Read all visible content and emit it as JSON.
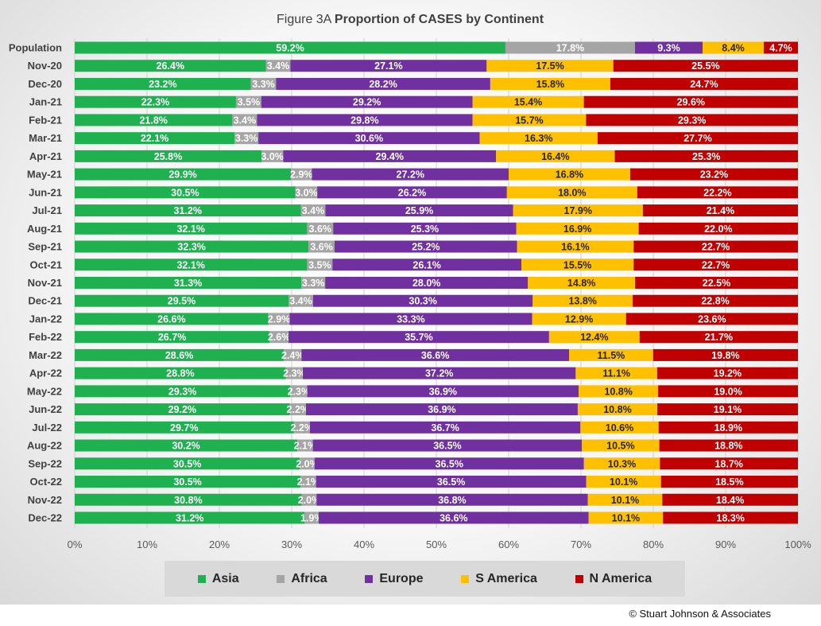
{
  "copyright": "© Stuart Johnson & Associates",
  "chart_data": {
    "type": "bar",
    "orientation": "horizontal",
    "stacked": true,
    "percent": true,
    "title_prefix": "Figure 3A",
    "title": "Proportion of CASES by Continent",
    "xlabel": "",
    "ylabel": "",
    "xlim": [
      0,
      100
    ],
    "x_ticks": [
      "0%",
      "10%",
      "20%",
      "30%",
      "40%",
      "50%",
      "60%",
      "70%",
      "80%",
      "90%",
      "100%"
    ],
    "legend_position": "bottom",
    "grid": true,
    "categories": [
      "Population",
      "Nov-20",
      "Dec-20",
      "Jan-21",
      "Feb-21",
      "Mar-21",
      "Apr-21",
      "May-21",
      "Jun-21",
      "Jul-21",
      "Aug-21",
      "Sep-21",
      "Oct-21",
      "Nov-21",
      "Dec-21",
      "Jan-22",
      "Feb-22",
      "Mar-22",
      "Apr-22",
      "May-22",
      "Jun-22",
      "Jul-22",
      "Aug-22",
      "Sep-22",
      "Oct-22",
      "Nov-22",
      "Dec-22"
    ],
    "series": [
      {
        "name": "Asia",
        "color": "#1fb050",
        "values": [
          59.2,
          26.4,
          23.2,
          22.3,
          21.8,
          22.1,
          25.8,
          29.9,
          30.5,
          31.2,
          32.1,
          32.3,
          32.1,
          31.3,
          29.5,
          26.6,
          26.7,
          28.6,
          28.8,
          29.3,
          29.2,
          29.7,
          30.2,
          30.5,
          30.5,
          30.8,
          31.2
        ]
      },
      {
        "name": "Africa",
        "color": "#a5a5a5",
        "values": [
          17.8,
          3.4,
          3.3,
          3.5,
          3.4,
          3.3,
          3.0,
          2.9,
          3.0,
          3.4,
          3.6,
          3.6,
          3.5,
          3.3,
          3.4,
          2.9,
          2.6,
          2.4,
          2.3,
          2.3,
          2.2,
          2.2,
          2.1,
          2.0,
          2.1,
          2.0,
          1.9
        ]
      },
      {
        "name": "Europe",
        "color": "#7030a0",
        "values": [
          9.3,
          27.1,
          28.2,
          29.2,
          29.8,
          30.6,
          29.4,
          27.2,
          26.2,
          25.9,
          25.3,
          25.2,
          26.1,
          28.0,
          30.3,
          33.3,
          35.7,
          36.6,
          37.2,
          36.9,
          36.9,
          36.7,
          36.5,
          36.5,
          36.5,
          36.8,
          36.6
        ]
      },
      {
        "name": "S America",
        "color": "#ffc000",
        "values": [
          8.4,
          17.5,
          15.8,
          15.4,
          15.7,
          16.3,
          16.4,
          16.8,
          18.0,
          17.9,
          16.9,
          16.1,
          15.5,
          14.8,
          13.8,
          12.9,
          12.4,
          11.5,
          11.1,
          10.8,
          10.8,
          10.6,
          10.5,
          10.3,
          10.1,
          10.1,
          10.1
        ]
      },
      {
        "name": "N America",
        "color": "#c00000",
        "values": [
          4.7,
          25.5,
          24.7,
          29.6,
          29.3,
          27.7,
          25.3,
          23.2,
          22.2,
          21.4,
          22.0,
          22.7,
          22.7,
          22.5,
          22.8,
          23.6,
          21.7,
          19.8,
          19.2,
          19.0,
          19.1,
          18.9,
          18.8,
          18.7,
          18.5,
          18.4,
          18.3
        ]
      }
    ]
  }
}
